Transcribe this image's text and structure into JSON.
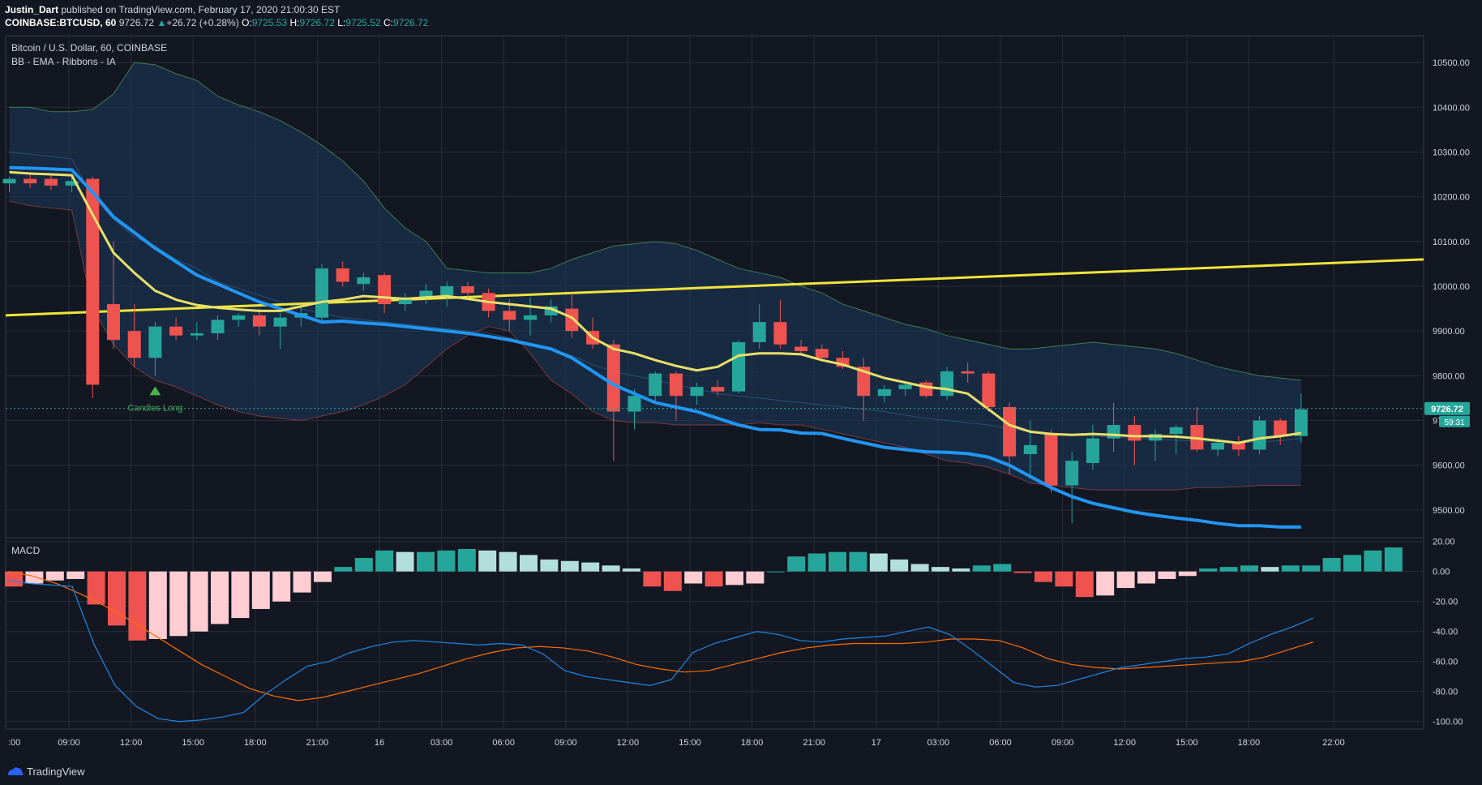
{
  "header": {
    "author": "Justin_Dart",
    "published": "published on TradingView.com, February 17, 2020 21:00:30 EST",
    "symbol_line": "COINBASE:BTCUSD, 60",
    "last": "9726.72",
    "change_arrow": "▲",
    "change": "+26.72 (+0.28%)",
    "o_label": "O:",
    "o": "9725.53",
    "h_label": "H:",
    "h": "9726.72",
    "l_label": "L:",
    "l": "9725.52",
    "c_label": "C:",
    "c": "9726.72"
  },
  "legend": {
    "title": "Bitcoin / U.S. Dollar, 60, COINBASE",
    "indicator": "BB - EMA - Ribbons - IA",
    "macd": "MACD"
  },
  "annotation": {
    "signal": "Candles Long"
  },
  "price_tags": {
    "last": "9726.72",
    "countdown": "59:31"
  },
  "footer": {
    "brand": "TradingView"
  },
  "colors": {
    "background": "#131722",
    "grid": "#2a2e39",
    "up": "#26a69a",
    "down": "#ef5350",
    "ema_fast": "#2196f3",
    "ema_slow": "#e8e06a",
    "trend_line": "#f0e53a",
    "bb_upper": "#3f7d4f",
    "bb_lower": "#7a3a3e",
    "bb_fill": "#1b3a5c",
    "macd_line": "#1e88e5",
    "signal_line": "#ff6d00",
    "hist_up_strong": "#26a69a",
    "hist_up_weak": "#b2dfdb",
    "hist_down_strong": "#ef5350",
    "hist_down_weak": "#ffcdd2"
  },
  "chart_data": [
    {
      "type": "candlestick",
      "title": "Bitcoin / U.S. Dollar, 60, COINBASE",
      "ylim": [
        9440,
        10560
      ],
      "y_ticks": [
        "10500.00",
        "10400.00",
        "10300.00",
        "10200.00",
        "10100.00",
        "10000.00",
        "9900.00",
        "9800.00",
        "9700.00",
        "9600.00",
        "9500.00"
      ],
      "x_ticks": [
        ":00",
        "09:00",
        "12:00",
        "15:00",
        "18:00",
        "21:00",
        "16",
        "03:00",
        "06:00",
        "09:00",
        "12:00",
        "15:00",
        "18:00",
        "21:00",
        "17",
        "03:00",
        "06:00",
        "09:00",
        "12:00",
        "15:00",
        "18:00",
        "22:00"
      ],
      "candles": [
        {
          "o": 10230,
          "h": 10245,
          "l": 10210,
          "c": 10240
        },
        {
          "o": 10240,
          "h": 10250,
          "l": 10220,
          "c": 10230
        },
        {
          "o": 10240,
          "h": 10250,
          "l": 10215,
          "c": 10225
        },
        {
          "o": 10225,
          "h": 10245,
          "l": 10210,
          "c": 10235
        },
        {
          "o": 10240,
          "h": 10245,
          "l": 9750,
          "c": 9780
        },
        {
          "o": 9960,
          "h": 10100,
          "l": 9860,
          "c": 9880
        },
        {
          "o": 9900,
          "h": 9960,
          "l": 9820,
          "c": 9840
        },
        {
          "o": 9840,
          "h": 9920,
          "l": 9800,
          "c": 9910
        },
        {
          "o": 9910,
          "h": 9930,
          "l": 9880,
          "c": 9890
        },
        {
          "o": 9890,
          "h": 9920,
          "l": 9880,
          "c": 9895
        },
        {
          "o": 9895,
          "h": 9935,
          "l": 9880,
          "c": 9925
        },
        {
          "o": 9925,
          "h": 9940,
          "l": 9910,
          "c": 9935
        },
        {
          "o": 9935,
          "h": 9950,
          "l": 9890,
          "c": 9910
        },
        {
          "o": 9910,
          "h": 9940,
          "l": 9860,
          "c": 9930
        },
        {
          "o": 9930,
          "h": 9960,
          "l": 9910,
          "c": 9940
        },
        {
          "o": 9930,
          "h": 10050,
          "l": 9920,
          "c": 10040
        },
        {
          "o": 10040,
          "h": 10055,
          "l": 10000,
          "c": 10010
        },
        {
          "o": 10005,
          "h": 10030,
          "l": 9990,
          "c": 10020
        },
        {
          "o": 10025,
          "h": 10030,
          "l": 9940,
          "c": 9960
        },
        {
          "o": 9960,
          "h": 9985,
          "l": 9945,
          "c": 9975
        },
        {
          "o": 9975,
          "h": 10005,
          "l": 9960,
          "c": 9990
        },
        {
          "o": 9980,
          "h": 10010,
          "l": 9955,
          "c": 10000
        },
        {
          "o": 10000,
          "h": 10010,
          "l": 9970,
          "c": 9985
        },
        {
          "o": 9985,
          "h": 9995,
          "l": 9930,
          "c": 9945
        },
        {
          "o": 9945,
          "h": 9970,
          "l": 9900,
          "c": 9925
        },
        {
          "o": 9925,
          "h": 9975,
          "l": 9890,
          "c": 9935
        },
        {
          "o": 9935,
          "h": 9970,
          "l": 9920,
          "c": 9955
        },
        {
          "o": 9950,
          "h": 9985,
          "l": 9885,
          "c": 9900
        },
        {
          "o": 9900,
          "h": 9930,
          "l": 9860,
          "c": 9870
        },
        {
          "o": 9870,
          "h": 9880,
          "l": 9610,
          "c": 9720
        },
        {
          "o": 9720,
          "h": 9770,
          "l": 9680,
          "c": 9755
        },
        {
          "o": 9755,
          "h": 9810,
          "l": 9740,
          "c": 9805
        },
        {
          "o": 9805,
          "h": 9810,
          "l": 9700,
          "c": 9755
        },
        {
          "o": 9755,
          "h": 9785,
          "l": 9735,
          "c": 9775
        },
        {
          "o": 9775,
          "h": 9790,
          "l": 9755,
          "c": 9765
        },
        {
          "o": 9765,
          "h": 9880,
          "l": 9760,
          "c": 9875
        },
        {
          "o": 9875,
          "h": 9960,
          "l": 9860,
          "c": 9920
        },
        {
          "o": 9920,
          "h": 9970,
          "l": 9860,
          "c": 9870
        },
        {
          "o": 9865,
          "h": 9880,
          "l": 9845,
          "c": 9855
        },
        {
          "o": 9860,
          "h": 9870,
          "l": 9835,
          "c": 9840
        },
        {
          "o": 9840,
          "h": 9855,
          "l": 9815,
          "c": 9820
        },
        {
          "o": 9820,
          "h": 9840,
          "l": 9700,
          "c": 9755
        },
        {
          "o": 9755,
          "h": 9780,
          "l": 9740,
          "c": 9770
        },
        {
          "o": 9770,
          "h": 9785,
          "l": 9755,
          "c": 9780
        },
        {
          "o": 9785,
          "h": 9790,
          "l": 9750,
          "c": 9755
        },
        {
          "o": 9755,
          "h": 9820,
          "l": 9745,
          "c": 9810
        },
        {
          "o": 9810,
          "h": 9830,
          "l": 9785,
          "c": 9805
        },
        {
          "o": 9805,
          "h": 9810,
          "l": 9720,
          "c": 9730
        },
        {
          "o": 9730,
          "h": 9740,
          "l": 9580,
          "c": 9620
        },
        {
          "o": 9625,
          "h": 9700,
          "l": 9570,
          "c": 9645
        },
        {
          "o": 9670,
          "h": 9680,
          "l": 9540,
          "c": 9555
        },
        {
          "o": 9555,
          "h": 9630,
          "l": 9470,
          "c": 9610
        },
        {
          "o": 9605,
          "h": 9690,
          "l": 9590,
          "c": 9660
        },
        {
          "o": 9660,
          "h": 9740,
          "l": 9630,
          "c": 9690
        },
        {
          "o": 9690,
          "h": 9710,
          "l": 9600,
          "c": 9655
        },
        {
          "o": 9655,
          "h": 9680,
          "l": 9610,
          "c": 9670
        },
        {
          "o": 9670,
          "h": 9690,
          "l": 9625,
          "c": 9685
        },
        {
          "o": 9690,
          "h": 9730,
          "l": 9630,
          "c": 9635
        },
        {
          "o": 9635,
          "h": 9660,
          "l": 9620,
          "c": 9650
        },
        {
          "o": 9650,
          "h": 9665,
          "l": 9620,
          "c": 9635
        },
        {
          "o": 9635,
          "h": 9710,
          "l": 9625,
          "c": 9700
        },
        {
          "o": 9700,
          "h": 9705,
          "l": 9645,
          "c": 9665
        },
        {
          "o": 9665,
          "h": 9760,
          "l": 9650,
          "c": 9725
        }
      ],
      "ema_fast": [
        10265,
        10264,
        10262,
        10260,
        10210,
        10155,
        10120,
        10085,
        10055,
        10025,
        10005,
        9985,
        9965,
        9950,
        9935,
        9920,
        9922,
        9918,
        9915,
        9910,
        9905,
        9900,
        9895,
        9888,
        9880,
        9870,
        9860,
        9840,
        9810,
        9780,
        9760,
        9740,
        9730,
        9720,
        9705,
        9690,
        9680,
        9679,
        9672,
        9671,
        9660,
        9650,
        9640,
        9635,
        9630,
        9629,
        9626,
        9618,
        9600,
        9575,
        9550,
        9530,
        9515,
        9505,
        9495,
        9488,
        9482,
        9477,
        9470,
        9465,
        9465,
        9462,
        9462
      ],
      "ema_slow": [
        10255,
        10252,
        10250,
        10248,
        10160,
        10075,
        10030,
        9990,
        9970,
        9958,
        9952,
        9948,
        9945,
        9945,
        9955,
        9965,
        9970,
        9978,
        9975,
        9972,
        9975,
        9978,
        9972,
        9965,
        9960,
        9955,
        9950,
        9930,
        9885,
        9860,
        9850,
        9835,
        9822,
        9812,
        9820,
        9845,
        9850,
        9850,
        9848,
        9835,
        9825,
        9810,
        9795,
        9785,
        9775,
        9770,
        9760,
        9725,
        9690,
        9675,
        9670,
        9668,
        9670,
        9668,
        9665,
        9665,
        9664,
        9660,
        9655,
        9650,
        9660,
        9665,
        9672
      ],
      "bb_upper": [
        10400,
        10400,
        10390,
        10390,
        10395,
        10430,
        10500,
        10495,
        10475,
        10460,
        10425,
        10405,
        10390,
        10370,
        10345,
        10315,
        10280,
        10235,
        10175,
        10130,
        10100,
        10040,
        10035,
        10030,
        10030,
        10030,
        10040,
        10060,
        10075,
        10090,
        10095,
        10100,
        10095,
        10080,
        10060,
        10040,
        10030,
        10020,
        10000,
        9985,
        9960,
        9945,
        9930,
        9915,
        9905,
        9890,
        9880,
        9870,
        9860,
        9860,
        9865,
        9870,
        9875,
        9870,
        9865,
        9860,
        9850,
        9835,
        9820,
        9810,
        9800,
        9795,
        9790
      ],
      "bb_lower": [
        10190,
        10180,
        10175,
        10170,
        9950,
        9870,
        9820,
        9790,
        9775,
        9755,
        9735,
        9720,
        9710,
        9705,
        9700,
        9710,
        9720,
        9735,
        9755,
        9780,
        9820,
        9860,
        9890,
        9910,
        9900,
        9850,
        9790,
        9760,
        9720,
        9700,
        9695,
        9695,
        9690,
        9690,
        9690,
        9690,
        9695,
        9690,
        9690,
        9680,
        9670,
        9660,
        9650,
        9640,
        9625,
        9610,
        9605,
        9595,
        9580,
        9560,
        9555,
        9550,
        9545,
        9545,
        9545,
        9545,
        9545,
        9550,
        9550,
        9552,
        9555,
        9555,
        9555
      ],
      "bb_mid": [
        10300,
        10295,
        10290,
        10285,
        10200,
        10150,
        10110,
        10090,
        10060,
        10040,
        10010,
        9995,
        9980,
        9965,
        9950,
        9940,
        9930,
        9925,
        9920,
        9915,
        9910,
        9905,
        9900,
        9895,
        9885,
        9870,
        9860,
        9845,
        9825,
        9810,
        9800,
        9790,
        9780,
        9770,
        9760,
        9755,
        9750,
        9745,
        9740,
        9735,
        9730,
        9725,
        9720,
        9712,
        9705,
        9700,
        9695,
        9690,
        9682,
        9675,
        9670,
        9667,
        9665,
        9663,
        9660,
        9658,
        9656,
        9654,
        9652,
        9650,
        9652,
        9655,
        9660
      ],
      "trend_line": {
        "start": 9935,
        "end": 10060
      },
      "signals": [
        {
          "index": 7,
          "label": "Candles Long"
        }
      ],
      "last_price": 9726.72
    },
    {
      "type": "bar",
      "title": "MACD",
      "ylim": [
        -105,
        22
      ],
      "y_ticks": [
        "20.00",
        "0.00",
        "-20.00",
        "-40.00",
        "-60.00",
        "-80.00",
        "-100.00"
      ],
      "histogram": [
        -10,
        -8,
        -6,
        -5,
        -22,
        -36,
        -46,
        -45,
        -43,
        -40,
        -35,
        -31,
        -25,
        -20,
        -14,
        -7,
        3,
        9,
        14,
        13,
        13,
        14,
        15,
        14,
        13,
        11,
        8,
        7,
        6,
        4,
        2,
        -10,
        -13,
        -8,
        -10,
        -9,
        -8,
        0,
        10,
        12,
        13,
        13,
        12,
        8,
        5,
        3,
        2,
        4,
        5,
        -1,
        -7,
        -10,
        -17,
        -16,
        -11,
        -8,
        -5,
        -3,
        2,
        3,
        4,
        3,
        4,
        4,
        9,
        11,
        14,
        16
      ],
      "macd_line": [
        -6,
        -8,
        -9,
        -10,
        -48,
        -76,
        -90,
        -98,
        -100,
        -99,
        -97,
        -94,
        -82,
        -72,
        -63,
        -60,
        -54,
        -50,
        -47,
        -46,
        -47,
        -48,
        -49,
        -48,
        -49,
        -55,
        -66,
        -70,
        -72,
        -74,
        -76,
        -72,
        -54,
        -48,
        -44,
        -40,
        -42,
        -46,
        -47,
        -45,
        -44,
        -43,
        -40,
        -37,
        -42,
        -52,
        -63,
        -74,
        -77,
        -76,
        -72,
        -68,
        -64,
        -62,
        -60,
        -58,
        -57,
        -55,
        -48,
        -42,
        -37,
        -31
      ],
      "signal_line": [
        0,
        -3,
        -8,
        -15,
        -23,
        -32,
        -42,
        -52,
        -62,
        -70,
        -78,
        -83,
        -86,
        -84,
        -80,
        -76,
        -72,
        -68,
        -63,
        -58,
        -54,
        -51,
        -50,
        -51,
        -53,
        -57,
        -62,
        -65,
        -67,
        -66,
        -62,
        -58,
        -54,
        -51,
        -49,
        -48,
        -48,
        -48,
        -47,
        -45,
        -45,
        -46,
        -51,
        -58,
        -62,
        -64,
        -65,
        -64,
        -63,
        -62,
        -61,
        -60,
        -57,
        -52,
        -47
      ]
    }
  ]
}
